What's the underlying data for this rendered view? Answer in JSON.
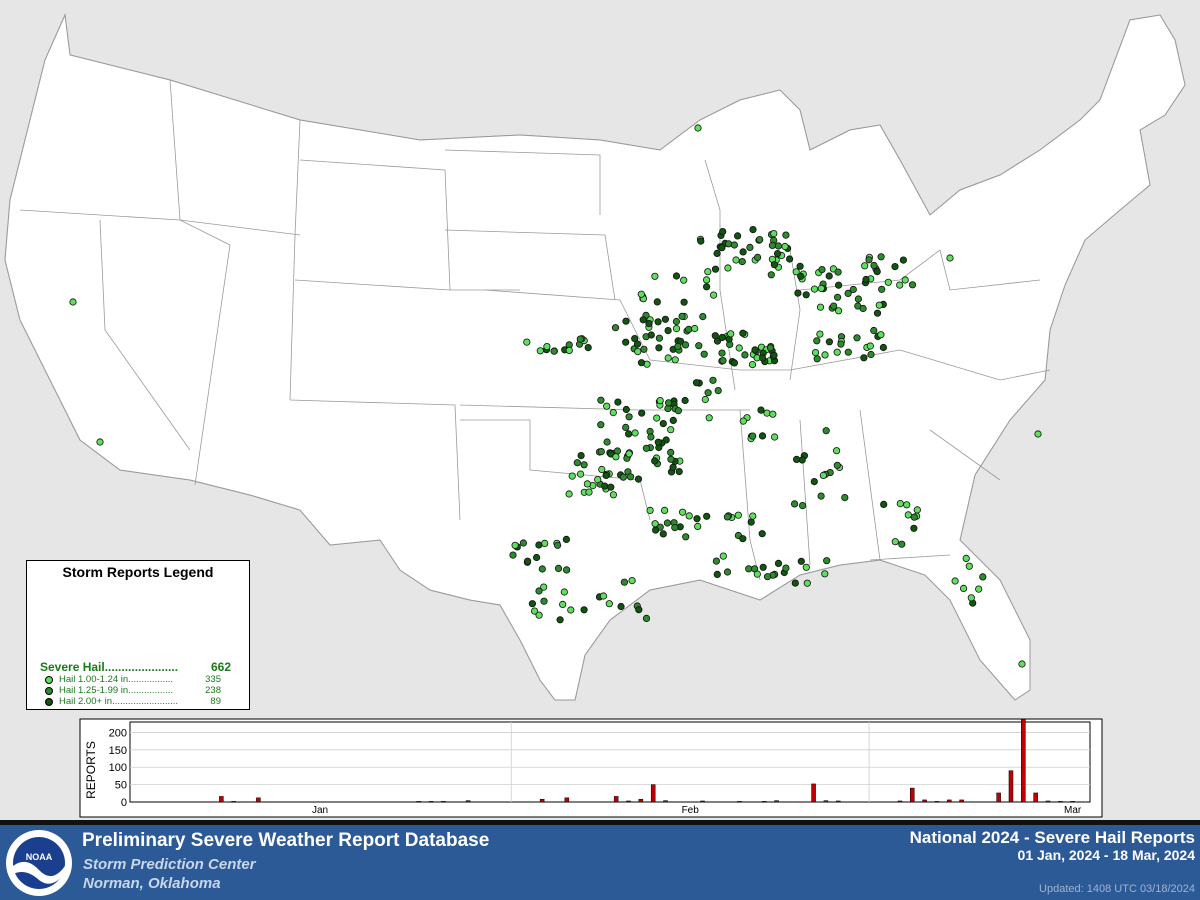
{
  "legend": {
    "title": "Storm Reports Legend",
    "category": "Severe Hail......................",
    "category_total": "662",
    "rows": [
      {
        "label": "Hail 1.00-1.24 in.................",
        "count": "335",
        "color": "#5ee05e"
      },
      {
        "label": "Hail 1.25-1.99 in.................",
        "count": "238",
        "color": "#2e8a2e"
      },
      {
        "label": "Hail 2.00+ in.........................",
        "count": "89",
        "color": "#115511"
      }
    ]
  },
  "colors": {
    "light": "#5ee05e",
    "medium": "#2e8a2e",
    "dark": "#115511",
    "bar": "#c00000",
    "footer_bg": "#2c5a96"
  },
  "chart_data": {
    "type": "bar",
    "ylabel": "REPORTS",
    "yticks": [
      "200",
      "150",
      "100",
      "50",
      "0"
    ],
    "ylim": [
      0,
      230
    ],
    "xlim": [
      1,
      78
    ],
    "month_labels": [
      {
        "label": "Jan",
        "day": 16
      },
      {
        "label": "Feb",
        "day": 46
      },
      {
        "label": "Mar",
        "day": 77
      }
    ],
    "month_boundaries": [
      32,
      61
    ],
    "bars": [
      {
        "day": 8,
        "value": 16
      },
      {
        "day": 9,
        "value": 2
      },
      {
        "day": 11,
        "value": 12
      },
      {
        "day": 24,
        "value": 2
      },
      {
        "day": 25,
        "value": 2
      },
      {
        "day": 26,
        "value": 2
      },
      {
        "day": 28,
        "value": 4
      },
      {
        "day": 34,
        "value": 8
      },
      {
        "day": 36,
        "value": 12
      },
      {
        "day": 40,
        "value": 16
      },
      {
        "day": 41,
        "value": 3
      },
      {
        "day": 42,
        "value": 8
      },
      {
        "day": 43,
        "value": 50
      },
      {
        "day": 44,
        "value": 4
      },
      {
        "day": 47,
        "value": 3
      },
      {
        "day": 50,
        "value": 2
      },
      {
        "day": 52,
        "value": 2
      },
      {
        "day": 53,
        "value": 4
      },
      {
        "day": 56,
        "value": 52
      },
      {
        "day": 57,
        "value": 4
      },
      {
        "day": 58,
        "value": 3
      },
      {
        "day": 63,
        "value": 3
      },
      {
        "day": 64,
        "value": 40
      },
      {
        "day": 65,
        "value": 6
      },
      {
        "day": 66,
        "value": 2
      },
      {
        "day": 67,
        "value": 6
      },
      {
        "day": 68,
        "value": 6
      },
      {
        "day": 71,
        "value": 26
      },
      {
        "day": 72,
        "value": 90
      },
      {
        "day": 73,
        "value": 238
      },
      {
        "day": 74,
        "value": 26
      },
      {
        "day": 75,
        "value": 3
      },
      {
        "day": 76,
        "value": 2
      },
      {
        "day": 77,
        "value": 2
      }
    ]
  },
  "footer": {
    "db_title": "Preliminary Severe Weather Report Database",
    "org": "Storm Prediction Center",
    "location": "Norman, Oklahoma",
    "report_title": "National  2024 - Severe Hail Reports",
    "date_range": "01 Jan, 2024 - 18 Mar, 2024",
    "updated": "Updated: 1408 UTC 03/18/2024",
    "logo_text": "NOAA"
  }
}
